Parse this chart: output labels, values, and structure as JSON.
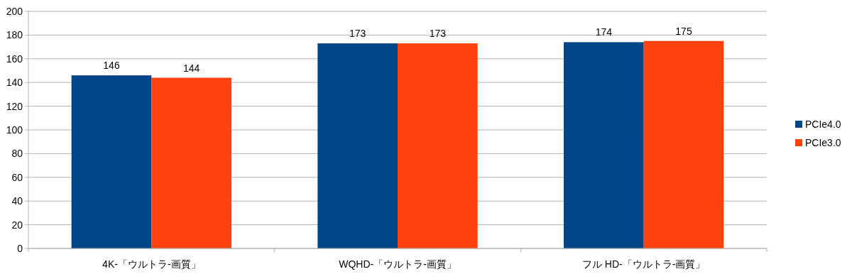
{
  "chart_data": {
    "type": "bar",
    "categories": [
      "4K-「ウルトラ-画質」",
      "WQHD-「ウルトラ-画質」",
      "フル HD-「ウルトラ-画質」"
    ],
    "series": [
      {
        "name": "PCIe4.0",
        "color": "#004586",
        "values": [
          146,
          173,
          174
        ]
      },
      {
        "name": "PCIe3.0",
        "color": "#ff420e",
        "values": [
          144,
          173,
          175
        ]
      }
    ],
    "ylim": [
      0,
      200
    ],
    "yticks": [
      0,
      20,
      40,
      60,
      80,
      100,
      120,
      140,
      160,
      180,
      200
    ],
    "grid": "y",
    "legend": "right",
    "data_labels": true
  }
}
